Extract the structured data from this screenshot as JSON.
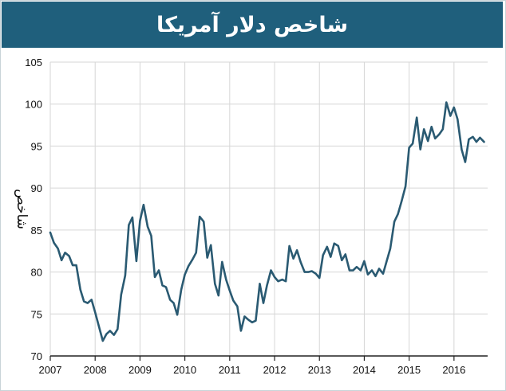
{
  "chart_data": {
    "type": "line",
    "title": "شاخص دلار آمریکا",
    "ylabel": "شاخص",
    "xlabel": "",
    "ylim": [
      70,
      105
    ],
    "xlim": [
      2007,
      2016.75
    ],
    "yticks": [
      70,
      75,
      80,
      85,
      90,
      95,
      100,
      105
    ],
    "xticks": [
      "2007",
      "2008",
      "2009",
      "2010",
      "2011",
      "2012",
      "2013",
      "2014",
      "2015",
      "2016"
    ],
    "grid": true,
    "line_color": "#2a5a72",
    "series": [
      {
        "x": [
          2007.0,
          2007.08,
          2007.17,
          2007.25,
          2007.33,
          2007.42,
          2007.5,
          2007.58,
          2007.67,
          2007.75,
          2007.83,
          2007.92,
          2008.0,
          2008.08,
          2008.17,
          2008.25,
          2008.33,
          2008.42,
          2008.5,
          2008.58,
          2008.67,
          2008.75,
          2008.83,
          2008.92,
          2009.0,
          2009.08,
          2009.17,
          2009.25,
          2009.33,
          2009.42,
          2009.5,
          2009.58,
          2009.67,
          2009.75,
          2009.83,
          2009.92,
          2010.0,
          2010.08,
          2010.17,
          2010.25,
          2010.33,
          2010.42,
          2010.5,
          2010.58,
          2010.67,
          2010.75,
          2010.83,
          2010.92,
          2011.0,
          2011.08,
          2011.17,
          2011.25,
          2011.33,
          2011.42,
          2011.5,
          2011.58,
          2011.67,
          2011.75,
          2011.83,
          2011.92,
          2012.0,
          2012.08,
          2012.17,
          2012.25,
          2012.33,
          2012.42,
          2012.5,
          2012.58,
          2012.67,
          2012.75,
          2012.83,
          2012.92,
          2013.0,
          2013.08,
          2013.17,
          2013.25,
          2013.33,
          2013.42,
          2013.5,
          2013.58,
          2013.67,
          2013.75,
          2013.83,
          2013.92,
          2014.0,
          2014.08,
          2014.17,
          2014.25,
          2014.33,
          2014.42,
          2014.5,
          2014.58,
          2014.67,
          2014.75,
          2014.83,
          2014.92,
          2015.0,
          2015.08,
          2015.17,
          2015.25,
          2015.33,
          2015.42,
          2015.5,
          2015.58,
          2015.67,
          2015.75,
          2015.83,
          2015.92,
          2016.0,
          2016.08,
          2016.17,
          2016.25,
          2016.33,
          2016.42,
          2016.5,
          2016.58,
          2016.67
        ],
        "y": [
          84.7,
          83.5,
          82.8,
          81.4,
          82.3,
          81.9,
          80.8,
          80.8,
          77.9,
          76.5,
          76.3,
          76.7,
          75.2,
          73.6,
          71.8,
          72.6,
          73.0,
          72.5,
          73.2,
          77.3,
          79.6,
          85.6,
          86.5,
          81.3,
          86.1,
          88.0,
          85.4,
          84.3,
          79.4,
          80.2,
          78.4,
          78.2,
          76.7,
          76.3,
          74.9,
          77.9,
          79.7,
          80.7,
          81.5,
          82.3,
          86.6,
          86.0,
          81.7,
          83.2,
          78.6,
          77.2,
          81.2,
          79.1,
          77.8,
          76.6,
          75.9,
          73.0,
          74.7,
          74.3,
          74.0,
          74.2,
          78.6,
          76.3,
          78.4,
          80.2,
          79.4,
          78.9,
          79.1,
          78.9,
          83.1,
          81.6,
          82.6,
          81.2,
          80.0,
          80.0,
          80.1,
          79.8,
          79.3,
          82.0,
          83.0,
          81.8,
          83.4,
          83.1,
          81.4,
          82.1,
          80.2,
          80.2,
          80.6,
          80.2,
          81.3,
          79.7,
          80.2,
          79.5,
          80.4,
          79.8,
          81.3,
          82.8,
          86.0,
          86.9,
          88.4,
          90.2,
          94.8,
          95.3,
          98.4,
          94.6,
          97.0,
          95.6,
          97.3,
          95.9,
          96.4,
          97.0,
          100.2,
          98.6,
          99.6,
          98.2,
          94.6,
          93.1,
          95.8,
          96.1,
          95.5,
          96.0,
          95.5
        ]
      }
    ]
  }
}
